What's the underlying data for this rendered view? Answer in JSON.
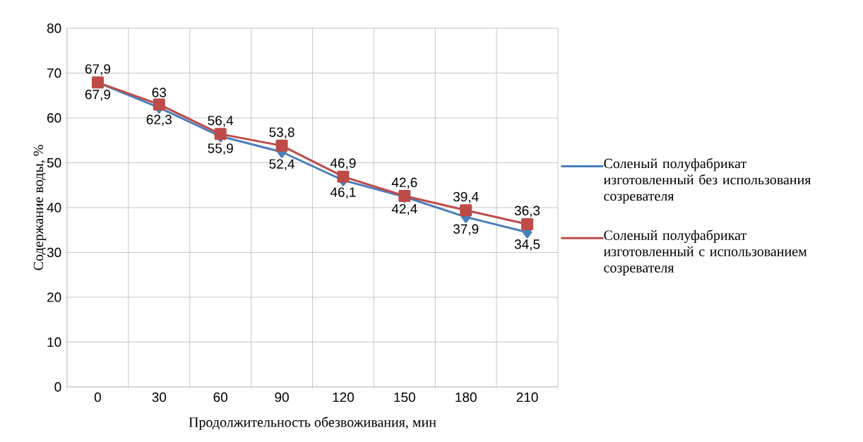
{
  "chart_data": {
    "type": "line",
    "xlabel": "Продолжительность обезвоживания, мин",
    "ylabel": "Содержание воды, %",
    "categories": [
      "0",
      "30",
      "60",
      "90",
      "120",
      "150",
      "180",
      "210"
    ],
    "series": [
      {
        "name": "Соленый полуфабрикат изготовленный без использования созревателя",
        "color": "#4a7ebb",
        "marker": "diamond",
        "values": [
          67.9,
          62.3,
          55.9,
          52.4,
          46.1,
          42.4,
          37.9,
          34.5
        ],
        "value_labels": [
          "67,9",
          "62,3",
          "55,9",
          "52,4",
          "46,1",
          "42,4",
          "37,9",
          "34,5"
        ]
      },
      {
        "name": "Соленый полуфабрикат изготовленный с использованием созревателя",
        "color": "#be4b48",
        "marker": "square",
        "values": [
          67.9,
          63,
          56.4,
          53.8,
          46.9,
          42.6,
          39.4,
          36.3
        ],
        "value_labels": [
          "67,9",
          "63",
          "56,4",
          "53,8",
          "46,9",
          "42,6",
          "39,4",
          "36,3"
        ]
      }
    ],
    "ylim": [
      0,
      80
    ],
    "yticks": [
      0,
      10,
      20,
      30,
      40,
      50,
      60,
      70,
      80
    ],
    "grid": true,
    "legend": "right",
    "line_style": "solid"
  }
}
